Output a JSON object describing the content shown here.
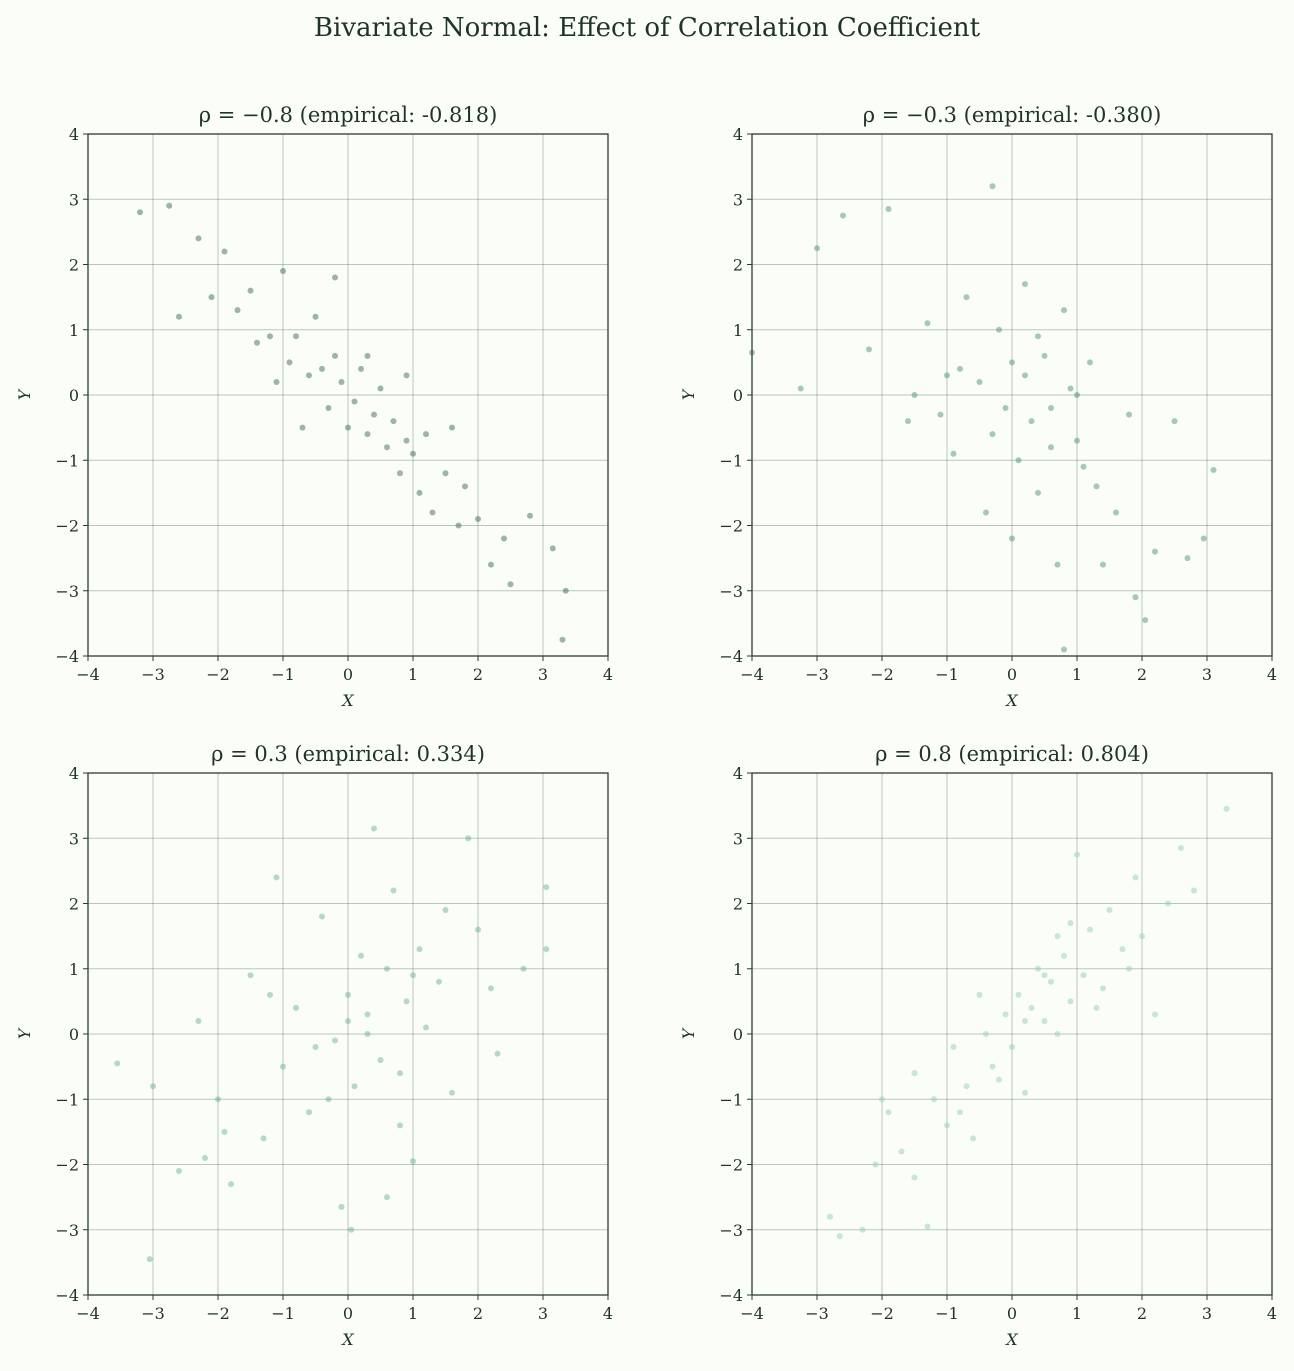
{
  "title": "Bivariate Normal: Effect of Correlation Coefficient",
  "chart_data": [
    {
      "type": "scatter",
      "title": "ρ = −0.8 (empirical: -0.818)",
      "x_label": "X",
      "y_label": "Y",
      "color": "#2d5a45",
      "opacity": 0.45,
      "grid": true,
      "xlim": [
        -4,
        4
      ],
      "ylim": [
        -4,
        4
      ],
      "xticks": [
        {
          "value": -4,
          "label": "−4"
        },
        {
          "value": -3,
          "label": "−3"
        },
        {
          "value": -2,
          "label": "−2"
        },
        {
          "value": -1,
          "label": "−1"
        },
        0,
        1,
        2,
        3,
        4
      ],
      "yticks": [
        {
          "value": -4,
          "label": "−4"
        },
        {
          "value": -3,
          "label": "−3"
        },
        {
          "value": -2,
          "label": "−2"
        },
        {
          "value": -1,
          "label": "−1"
        },
        0,
        1,
        2,
        3,
        4
      ],
      "x": [
        -3.2,
        -2.75,
        -2.6,
        -2.1,
        -1.9,
        -1.7,
        -1.5,
        -1.4,
        -1.2,
        -1.0,
        -0.9,
        -0.8,
        -0.6,
        -0.5,
        -0.4,
        -0.3,
        -0.2,
        -0.1,
        0.0,
        0.1,
        0.2,
        0.3,
        0.4,
        0.5,
        0.6,
        0.7,
        0.8,
        0.9,
        1.0,
        1.1,
        1.2,
        1.3,
        1.5,
        1.7,
        1.8,
        2.0,
        2.2,
        2.4,
        2.5,
        2.8,
        3.15,
        3.3,
        3.35,
        -1.1,
        -0.7,
        0.3,
        0.9,
        1.6,
        -2.3,
        -0.2
      ],
      "values": [
        2.8,
        2.9,
        1.2,
        1.5,
        2.2,
        1.3,
        1.6,
        0.8,
        0.9,
        1.9,
        0.5,
        0.9,
        0.3,
        1.2,
        0.4,
        -0.2,
        0.6,
        0.2,
        -0.5,
        -0.1,
        0.4,
        -0.6,
        -0.3,
        0.1,
        -0.8,
        -0.4,
        -1.2,
        -0.7,
        -0.9,
        -1.5,
        -0.6,
        -1.8,
        -1.2,
        -2.0,
        -1.4,
        -1.9,
        -2.6,
        -2.2,
        -2.9,
        -1.85,
        -2.35,
        -3.75,
        -3.0,
        0.2,
        -0.5,
        0.6,
        0.3,
        -0.5,
        2.4,
        1.8
      ]
    },
    {
      "type": "scatter",
      "title": "ρ = −0.3 (empirical: -0.380)",
      "x_label": "X",
      "y_label": "Y",
      "color": "#3d8a68",
      "opacity": 0.45,
      "grid": true,
      "xlim": [
        -4,
        4
      ],
      "ylim": [
        -4,
        4
      ],
      "xticks": [
        {
          "value": -4,
          "label": "−4"
        },
        {
          "value": -3,
          "label": "−3"
        },
        {
          "value": -2,
          "label": "−2"
        },
        {
          "value": -1,
          "label": "−1"
        },
        0,
        1,
        2,
        3,
        4
      ],
      "yticks": [
        {
          "value": -4,
          "label": "−4"
        },
        {
          "value": -3,
          "label": "−3"
        },
        {
          "value": -2,
          "label": "−2"
        },
        {
          "value": -1,
          "label": "−1"
        },
        0,
        1,
        2,
        3,
        4
      ],
      "x": [
        -4.0,
        -3.25,
        -3.0,
        -2.6,
        -1.9,
        -2.2,
        -1.6,
        -1.3,
        -1.0,
        -0.9,
        -0.7,
        -0.5,
        -0.3,
        -0.2,
        -0.1,
        0.0,
        0.1,
        0.2,
        0.3,
        0.4,
        0.5,
        0.6,
        0.7,
        0.8,
        0.9,
        1.0,
        1.1,
        1.2,
        1.4,
        1.6,
        1.8,
        1.9,
        2.05,
        2.2,
        2.5,
        2.95,
        3.1,
        -0.3,
        0.8,
        -1.1,
        -0.4,
        0.2,
        0.6,
        1.3,
        -0.8,
        0.0,
        2.7,
        -1.5,
        0.4,
        1.0
      ],
      "values": [
        0.65,
        0.1,
        2.25,
        2.75,
        2.85,
        0.7,
        -0.4,
        1.1,
        0.3,
        -0.9,
        1.5,
        0.2,
        -0.6,
        1.0,
        -0.2,
        0.5,
        -1.0,
        0.3,
        -0.4,
        -1.5,
        0.6,
        -0.2,
        -2.6,
        -3.9,
        0.1,
        -0.7,
        -1.1,
        0.5,
        -2.6,
        -1.8,
        -0.3,
        -3.1,
        -3.45,
        -2.4,
        -0.4,
        -2.2,
        -1.15,
        3.2,
        1.3,
        -0.3,
        -1.8,
        1.7,
        -0.8,
        -1.4,
        0.4,
        -2.2,
        -2.5,
        0.0,
        0.9,
        0.0
      ]
    },
    {
      "type": "scatter",
      "title": "ρ = 0.3 (empirical: 0.334)",
      "x_label": "X",
      "y_label": "Y",
      "color": "#5fb08a",
      "opacity": 0.45,
      "grid": true,
      "xlim": [
        -4,
        4
      ],
      "ylim": [
        -4,
        4
      ],
      "xticks": [
        {
          "value": -4,
          "label": "−4"
        },
        {
          "value": -3,
          "label": "−3"
        },
        {
          "value": -2,
          "label": "−2"
        },
        {
          "value": -1,
          "label": "−1"
        },
        0,
        1,
        2,
        3,
        4
      ],
      "yticks": [
        {
          "value": -4,
          "label": "−4"
        },
        {
          "value": -3,
          "label": "−3"
        },
        {
          "value": -2,
          "label": "−2"
        },
        {
          "value": -1,
          "label": "−1"
        },
        0,
        1,
        2,
        3,
        4
      ],
      "x": [
        -3.55,
        -3.05,
        -3.0,
        -2.6,
        -2.3,
        -2.0,
        -1.8,
        -1.5,
        -1.3,
        -1.1,
        -1.0,
        -0.8,
        -0.6,
        -0.4,
        -0.2,
        -0.1,
        0.0,
        0.05,
        0.1,
        0.2,
        0.3,
        0.4,
        0.5,
        0.6,
        0.7,
        0.8,
        0.9,
        1.0,
        1.1,
        1.2,
        1.4,
        1.6,
        1.85,
        2.0,
        2.3,
        2.7,
        3.05,
        3.05,
        -1.9,
        -0.5,
        0.3,
        1.0,
        -1.2,
        0.8,
        1.5,
        -0.3,
        0.6,
        2.2,
        -2.2,
        0.0
      ],
      "values": [
        -0.45,
        -3.45,
        -0.8,
        -2.1,
        0.2,
        -1.0,
        -2.3,
        0.9,
        -1.6,
        2.4,
        -0.5,
        0.4,
        -1.2,
        1.8,
        -0.1,
        -2.65,
        0.6,
        -3.0,
        -0.8,
        1.2,
        0.3,
        3.15,
        -0.4,
        1.0,
        2.2,
        -1.4,
        0.5,
        -1.95,
        1.3,
        0.1,
        0.8,
        -0.9,
        3.0,
        1.6,
        -0.3,
        1.0,
        2.25,
        1.3,
        -1.5,
        -0.2,
        0.0,
        0.9,
        0.6,
        -0.6,
        1.9,
        -1.0,
        -2.5,
        0.7,
        -1.9,
        0.2
      ]
    },
    {
      "type": "scatter",
      "title": "ρ = 0.8 (empirical: 0.804)",
      "x_label": "X",
      "y_label": "Y",
      "color": "#93d1b0",
      "opacity": 0.5,
      "grid": true,
      "xlim": [
        -4,
        4
      ],
      "ylim": [
        -4,
        4
      ],
      "xticks": [
        {
          "value": -4,
          "label": "−4"
        },
        {
          "value": -3,
          "label": "−3"
        },
        {
          "value": -2,
          "label": "−2"
        },
        {
          "value": -1,
          "label": "−1"
        },
        0,
        1,
        2,
        3,
        4
      ],
      "yticks": [
        {
          "value": -4,
          "label": "−4"
        },
        {
          "value": -3,
          "label": "−3"
        },
        {
          "value": -2,
          "label": "−2"
        },
        {
          "value": -1,
          "label": "−1"
        },
        0,
        1,
        2,
        3,
        4
      ],
      "x": [
        -2.8,
        -2.65,
        -2.3,
        -2.1,
        -1.9,
        -1.7,
        -1.5,
        -1.3,
        -1.2,
        -1.0,
        -0.9,
        -0.7,
        -0.6,
        -0.4,
        -0.3,
        -0.1,
        0.0,
        0.1,
        0.2,
        0.3,
        0.4,
        0.5,
        0.6,
        0.7,
        0.8,
        0.9,
        1.0,
        1.1,
        1.2,
        1.4,
        1.5,
        1.7,
        1.9,
        2.0,
        2.2,
        2.4,
        2.6,
        2.8,
        3.3,
        -0.8,
        0.2,
        0.7,
        -1.5,
        1.3,
        -0.2,
        0.5,
        1.8,
        -2.0,
        0.9,
        -0.5
      ],
      "values": [
        -2.8,
        -3.1,
        -3.0,
        -2.0,
        -1.2,
        -1.8,
        -0.6,
        -2.95,
        -1.0,
        -1.4,
        -0.2,
        -0.8,
        -1.6,
        0.0,
        -0.5,
        0.3,
        -0.2,
        0.6,
        -0.9,
        0.4,
        1.0,
        0.2,
        0.8,
        0.0,
        1.2,
        0.5,
        2.75,
        0.9,
        1.6,
        0.7,
        1.9,
        1.3,
        2.4,
        1.5,
        0.3,
        2.0,
        2.85,
        2.2,
        3.45,
        -1.2,
        0.2,
        1.5,
        -2.2,
        0.4,
        -0.7,
        0.9,
        1.0,
        -1.0,
        1.7,
        0.6
      ]
    }
  ]
}
